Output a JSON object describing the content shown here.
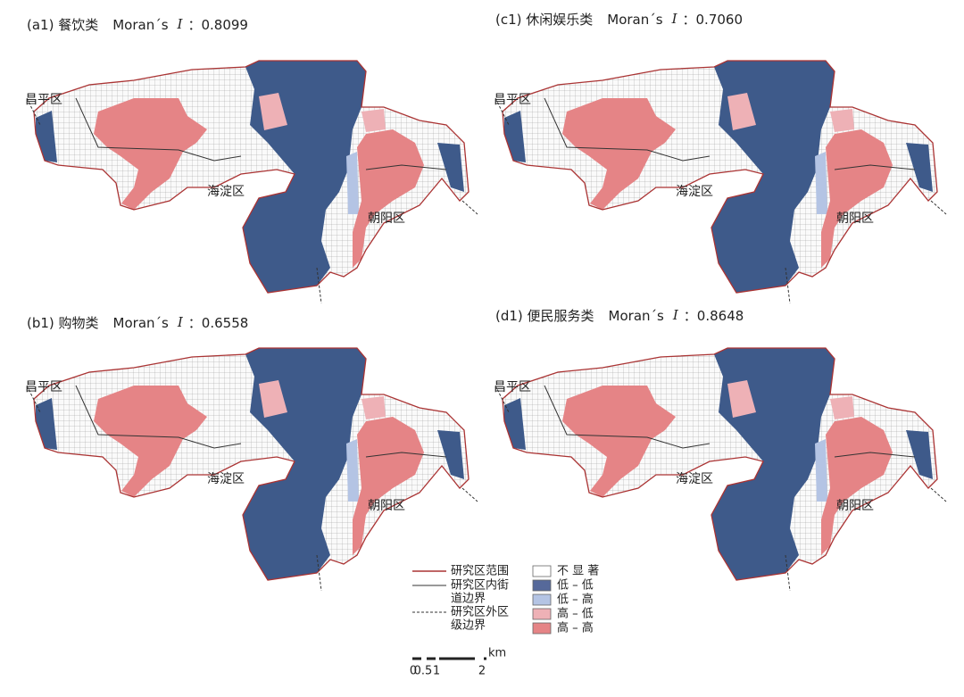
{
  "panels": [
    {
      "label": "(a1) 餐饮类",
      "moran": "Moran´s",
      "symbol": "I",
      "value": "：0.8099",
      "districts": [
        "昌平区",
        "海淀区",
        "朝阳区"
      ]
    },
    {
      "label": "(c1) 休闲娱乐类",
      "moran": "Moran´s",
      "symbol": "I",
      "value": "：0.7060",
      "districts": [
        "昌平区",
        "海淀区",
        "朝阳区"
      ]
    },
    {
      "label": "(b1) 购物类",
      "moran": "Moran´s",
      "symbol": "I",
      "value": "：0.6558",
      "districts": [
        "昌平区",
        "海淀区",
        "朝阳区"
      ]
    },
    {
      "label": "(d1) 便民服务类",
      "moran": "Moran´s",
      "symbol": "I",
      "value": "：0.8648",
      "districts": [
        "昌平区",
        "海淀区",
        "朝阳区"
      ]
    }
  ],
  "legend": {
    "lines": [
      [
        "研究区范围"
      ],
      [
        "研究区内街",
        "道边界"
      ],
      [
        "研究区外区",
        "级边界"
      ]
    ],
    "classes": [
      "不 显 著",
      "低 – 低",
      "低 – 高",
      "高 – 低",
      "高 – 高"
    ]
  },
  "scale": {
    "ticks": [
      "0",
      "0.5",
      "1",
      "2"
    ],
    "unit": "km"
  }
}
